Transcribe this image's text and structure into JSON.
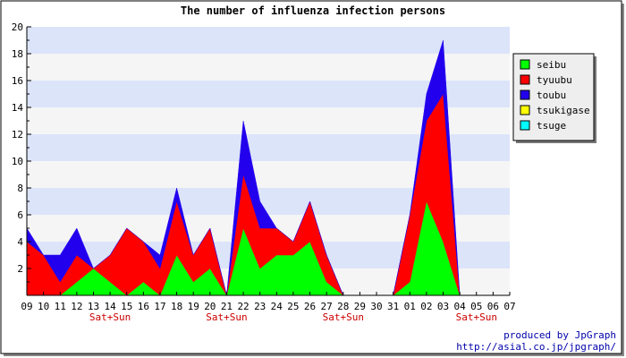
{
  "chart_data": {
    "type": "area",
    "title": "The number of influenza infection persons",
    "xlabel": "",
    "ylabel": "",
    "ylim": [
      0,
      20
    ],
    "yticks": [
      2,
      4,
      6,
      8,
      10,
      12,
      14,
      16,
      18,
      20
    ],
    "stacked": true,
    "grid": "horizontal bands",
    "legend_position": "right",
    "categories": [
      "09",
      "10",
      "11",
      "12",
      "13",
      "14",
      "15",
      "16",
      "17",
      "18",
      "19",
      "20",
      "21",
      "22",
      "23",
      "24",
      "25",
      "26",
      "27",
      "28",
      "29",
      "30",
      "31",
      "01",
      "02",
      "03",
      "04",
      "05",
      "06",
      "07"
    ],
    "weekend_label": "Sat+Sun",
    "weekend_markers": [
      "14",
      "21",
      "28",
      "05"
    ],
    "series": [
      {
        "name": "seibu",
        "color": "#00ff00",
        "values": [
          0,
          0,
          0,
          1,
          2,
          1,
          0,
          1,
          0,
          3,
          1,
          2,
          0,
          5,
          2,
          3,
          3,
          4,
          1,
          0,
          0,
          0,
          0,
          1,
          7,
          4,
          0,
          0,
          0,
          0
        ]
      },
      {
        "name": "tyuubu",
        "color": "#ff0000",
        "values": [
          4,
          3,
          1,
          2,
          0,
          2,
          5,
          3,
          2,
          4,
          2,
          3,
          0,
          4,
          3,
          2,
          1,
          3,
          2,
          0,
          0,
          0,
          0,
          5,
          6,
          11,
          0,
          0,
          0,
          0
        ]
      },
      {
        "name": "toubu",
        "color": "#2200ee",
        "values": [
          1,
          0,
          2,
          2,
          0,
          0,
          0,
          0,
          1,
          1,
          0,
          0,
          0,
          4,
          2,
          0,
          0,
          0,
          0,
          0,
          0,
          0,
          0,
          0,
          2,
          4,
          0,
          0,
          0,
          0
        ]
      },
      {
        "name": "tsukigase",
        "color": "#ffff00",
        "values": [
          0,
          0,
          0,
          0,
          0,
          0,
          0,
          0,
          0,
          0,
          0,
          0,
          0,
          0,
          0,
          0,
          0,
          0,
          0,
          0,
          0,
          0,
          0,
          0,
          0,
          0,
          0,
          0,
          0,
          0
        ]
      },
      {
        "name": "tsuge",
        "color": "#00ffff",
        "values": [
          0,
          0,
          0,
          0,
          0,
          0,
          0,
          0,
          0,
          0,
          0,
          0,
          0,
          0,
          0,
          0,
          0,
          0,
          0,
          0,
          0,
          0,
          0,
          0,
          0,
          0,
          0,
          0,
          0,
          0
        ]
      }
    ],
    "credits": [
      "produced by JpGraph",
      "http://asial.co.jp/jpgraph/"
    ],
    "colors": {
      "band_light": "#f5f5f5",
      "band_blue": "#dce4fa",
      "weekend_text": "#cc0000",
      "credit_text": "#0000aa",
      "legend_bg": "#eeeeee"
    }
  }
}
